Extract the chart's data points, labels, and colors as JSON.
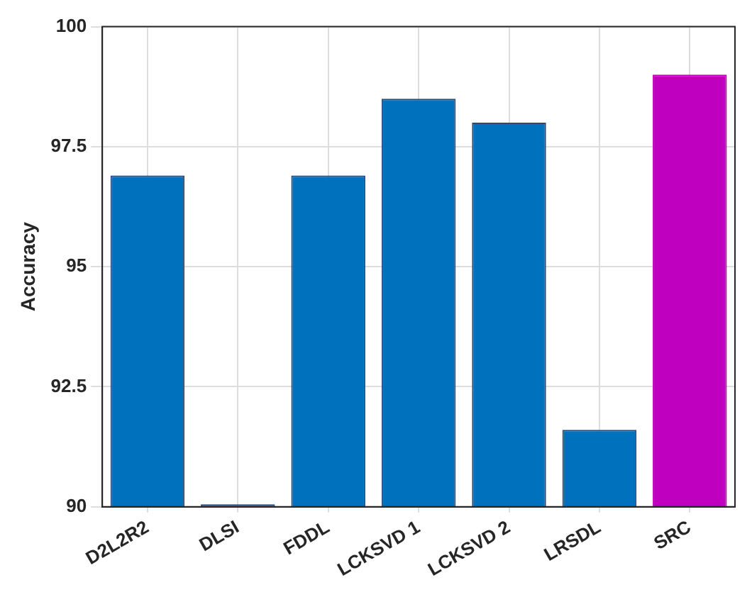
{
  "chart_data": {
    "type": "bar",
    "ylabel": "Accuracy",
    "categories": [
      "D2L2R2",
      "DLSI",
      "FDDL",
      "LCKSVD 1",
      "LCKSVD 2",
      "LRSDL",
      "SRC"
    ],
    "values": [
      96.9,
      90.05,
      96.9,
      98.5,
      98.0,
      91.6,
      99.0
    ],
    "colors": [
      "#0072bd",
      "#0072bd",
      "#0072bd",
      "#0072bd",
      "#0072bd",
      "#0072bd",
      "#bf00bf"
    ],
    "ylim": [
      90,
      100
    ],
    "yticks": [
      90,
      {
        "value": 92.5,
        "label": "92.5"
      },
      95,
      {
        "value": 97.5,
        "label": "97.5"
      },
      100
    ],
    "grid": true,
    "legend": false
  }
}
